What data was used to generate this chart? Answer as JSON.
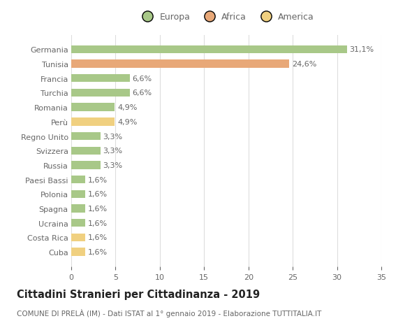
{
  "categories": [
    "Cuba",
    "Costa Rica",
    "Ucraina",
    "Spagna",
    "Polonia",
    "Paesi Bassi",
    "Russia",
    "Svizzera",
    "Regno Unito",
    "Perù",
    "Romania",
    "Turchia",
    "Francia",
    "Tunisia",
    "Germania"
  ],
  "values": [
    1.6,
    1.6,
    1.6,
    1.6,
    1.6,
    1.6,
    3.3,
    3.3,
    3.3,
    4.9,
    4.9,
    6.6,
    6.6,
    24.6,
    31.1
  ],
  "labels": [
    "1,6%",
    "1,6%",
    "1,6%",
    "1,6%",
    "1,6%",
    "1,6%",
    "3,3%",
    "3,3%",
    "3,3%",
    "4,9%",
    "4,9%",
    "6,6%",
    "6,6%",
    "24,6%",
    "31,1%"
  ],
  "colors": [
    "#f0d080",
    "#f0d080",
    "#a8c888",
    "#a8c888",
    "#a8c888",
    "#a8c888",
    "#a8c888",
    "#a8c888",
    "#a8c888",
    "#f0d080",
    "#a8c888",
    "#a8c888",
    "#a8c888",
    "#e8a878",
    "#a8c888"
  ],
  "legend": {
    "Europa": "#a8c888",
    "Africa": "#e8a878",
    "America": "#f0d080"
  },
  "xlim": [
    0,
    35
  ],
  "xticks": [
    0,
    5,
    10,
    15,
    20,
    25,
    30,
    35
  ],
  "title": "Cittadini Stranieri per Cittadinanza - 2019",
  "subtitle": "COMUNE DI PRELÀ (IM) - Dati ISTAT al 1° gennaio 2019 - Elaborazione TUTTITALIA.IT",
  "background_color": "#ffffff",
  "grid_color": "#dddddd",
  "bar_height": 0.55,
  "label_fontsize": 8,
  "tick_fontsize": 8,
  "title_fontsize": 10.5,
  "subtitle_fontsize": 7.5,
  "legend_fontsize": 9,
  "text_color": "#666666",
  "title_color": "#222222"
}
